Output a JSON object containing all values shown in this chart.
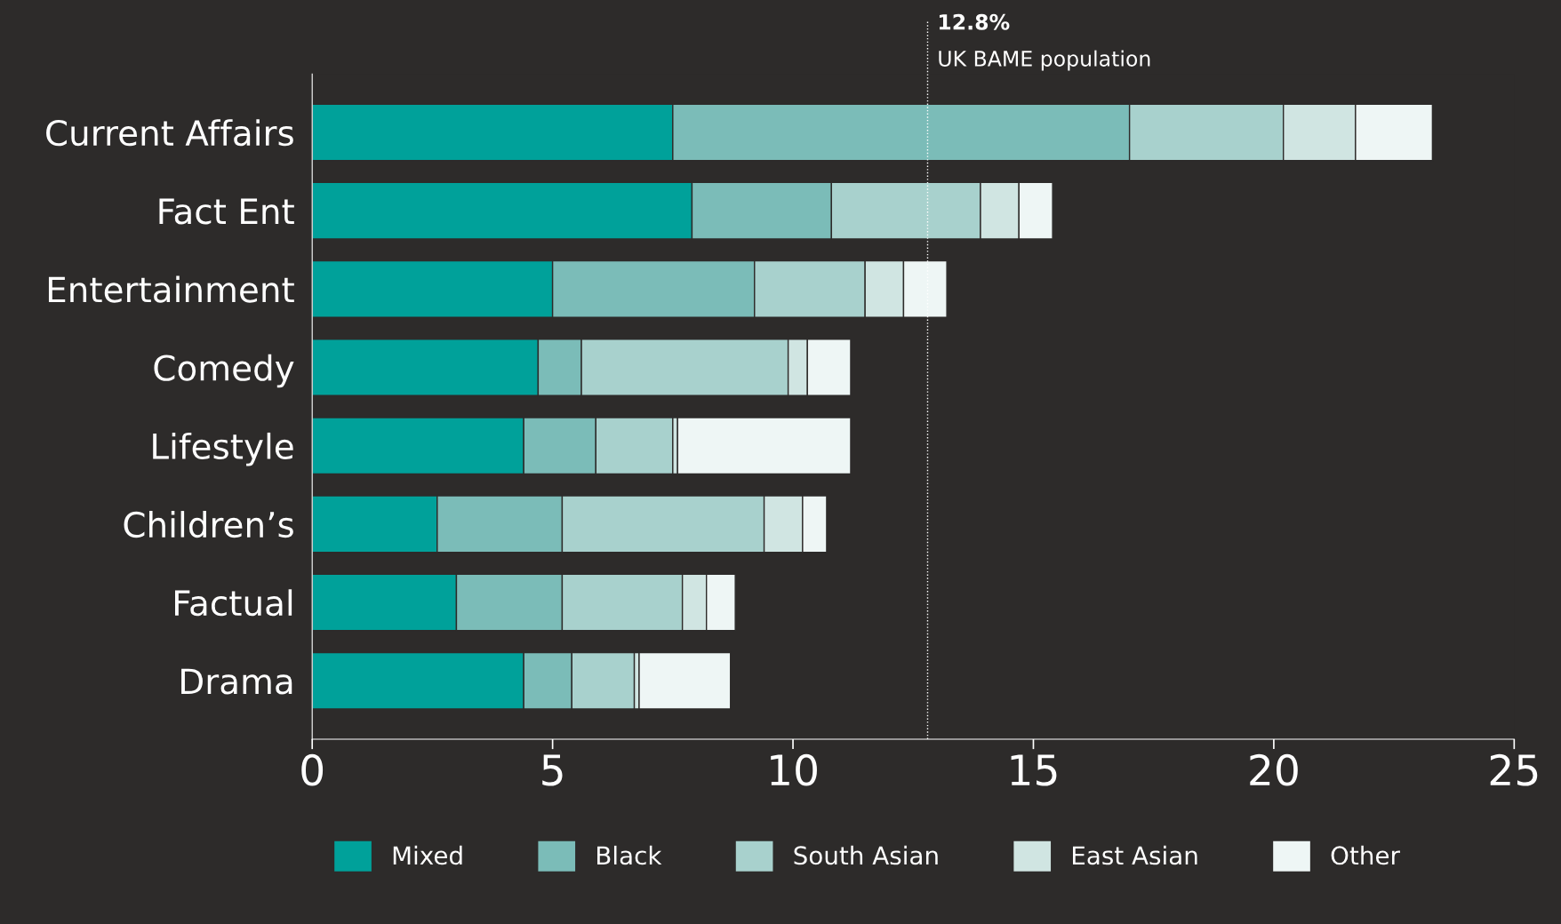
{
  "chart_data": {
    "type": "bar",
    "orientation": "horizontal",
    "stacked": true,
    "categories": [
      "Current Affairs",
      "Fact Ent",
      "Entertainment",
      "Comedy",
      "Lifestyle",
      "Children’s",
      "Factual",
      "Drama"
    ],
    "series": [
      {
        "name": "Mixed",
        "color": "#00a19a",
        "values": [
          7.5,
          7.9,
          5.0,
          4.7,
          4.4,
          2.6,
          3.0,
          4.4
        ]
      },
      {
        "name": "Black",
        "color": "#7bbcb8",
        "values": [
          9.5,
          2.9,
          4.2,
          0.9,
          1.5,
          2.6,
          2.2,
          1.0
        ]
      },
      {
        "name": "South Asian",
        "color": "#a8d1cd",
        "values": [
          3.2,
          3.1,
          2.3,
          4.3,
          1.6,
          4.2,
          2.5,
          1.3
        ]
      },
      {
        "name": "East Asian",
        "color": "#d0e5e2",
        "values": [
          1.5,
          0.8,
          0.8,
          0.4,
          0.1,
          0.8,
          0.5,
          0.1
        ]
      },
      {
        "name": "Other",
        "color": "#eef6f5",
        "values": [
          1.6,
          0.7,
          0.9,
          0.9,
          3.6,
          0.5,
          0.6,
          1.9
        ]
      }
    ],
    "xlim": [
      0,
      25
    ],
    "xticks": [
      0,
      5,
      10,
      15,
      20,
      25
    ],
    "grid": false,
    "legend": "bottom",
    "ref_lines": [
      {
        "axis": "x",
        "value": 12.8,
        "label": "12.8%\nUK BAME population",
        "color": "#ffffff",
        "line_style": "dotted"
      }
    ]
  }
}
